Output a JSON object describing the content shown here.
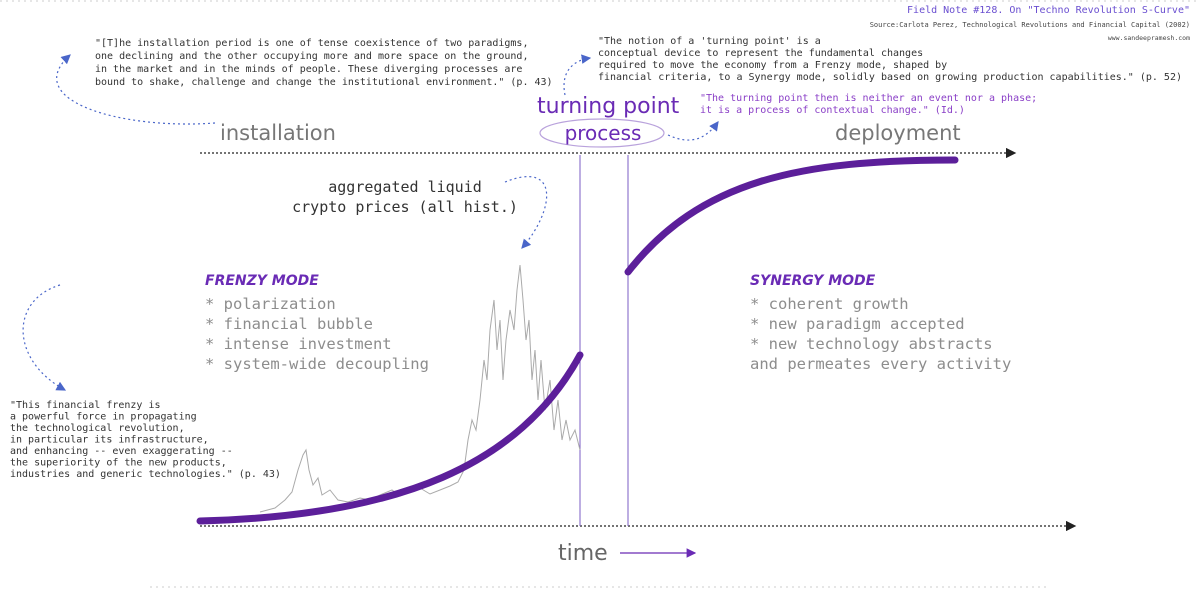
{
  "header": {
    "title": "Field Note #128. On \"Techno Revolution S-Curve\"",
    "source": "Source:Carlota Perez, Technological Revolutions and Financial Capital (2002)",
    "url": "www.sandeepramesh.com"
  },
  "quotes": {
    "installation": [
      "\"[T]he installation period is one of tense coexistence of two paradigms,",
      "one declining and the other occupying more and more space on the ground,",
      "in the market and in the minds of people.  These diverging processes are",
      "bound to shake, challenge and change the institutional environment.\" (p. 43)"
    ],
    "turning_point": [
      "\"The notion of a 'turning point' is a",
      "conceptual device to represent the fundamental changes",
      "required to move the economy from a Frenzy mode, shaped by",
      "financial criteria, to a Synergy mode, solidly based on growing production capabilities.\" (p. 52)"
    ],
    "process": [
      "\"The turning point then is neither an event nor a phase;",
      "it is a process of contextual change.\" (Id.)"
    ],
    "frenzy": [
      "\"This financial frenzy is",
      "a powerful force in propagating",
      "the technological revolution,",
      "in particular its infrastructure,",
      "and enhancing -- even exaggerating --",
      "the superiority of the new products,",
      "industries and generic technologies.\" (p. 43)"
    ]
  },
  "labels": {
    "installation": "installation",
    "deployment": "deployment",
    "turning_point": "turning point",
    "process": "process",
    "time": "time",
    "crypto": [
      "aggregated liquid",
      "crypto prices (all hist.)"
    ]
  },
  "frenzy": {
    "title": "FRENZY MODE",
    "items": [
      "* polarization",
      "* financial bubble",
      "* intense investment",
      "* system-wide decoupling"
    ]
  },
  "synergy": {
    "title": "SYNERGY MODE",
    "items": [
      "* coherent growth",
      "* new paradigm accepted",
      "* new technology abstracts",
      "  and permeates every activity"
    ]
  }
}
